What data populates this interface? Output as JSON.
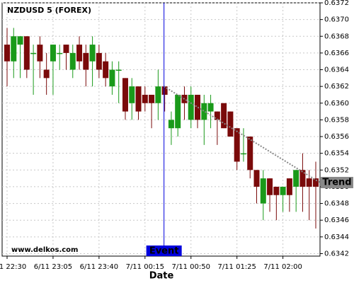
{
  "chart_data": {
    "type": "candlestick",
    "title": "NZDUSD 5 (FOREX)",
    "x_label": "Date",
    "watermark": "www.delkos.com",
    "categories": [
      "6/11 22:30",
      null,
      null,
      null,
      null,
      null,
      null,
      "6/11 23:05",
      null,
      null,
      null,
      null,
      null,
      null,
      "6/11 23:40",
      null,
      null,
      null,
      null,
      null,
      null,
      "7/11 00:15",
      null,
      null,
      null,
      null,
      null,
      null,
      "7/11 00:50",
      null,
      null,
      null,
      null,
      null,
      null,
      "7/11 01:25",
      null,
      null,
      null,
      null,
      null,
      null,
      "7/11 02:00",
      null,
      null,
      null,
      null,
      null
    ],
    "open": [
      0.6367,
      0.6365,
      0.6367,
      0.6368,
      0.6366,
      0.6367,
      0.6364,
      0.6365,
      0.6366,
      0.6367,
      0.6364,
      0.6367,
      0.6366,
      0.6365,
      0.6366,
      0.6365,
      0.6362,
      0.6364,
      0.6363,
      0.636,
      0.6362,
      0.6361,
      0.6361,
      0.636,
      0.6362,
      0.6357,
      0.6357,
      0.6361,
      0.6358,
      0.6361,
      0.6358,
      0.6359,
      0.6359,
      0.636,
      0.6359,
      0.6357,
      0.6354,
      0.6356,
      0.6352,
      0.6348,
      0.6351,
      0.635,
      0.6349,
      0.6351,
      0.635,
      0.6352,
      0.6351,
      0.6351
    ],
    "high": [
      0.6369,
      0.6369,
      0.6368,
      0.6368,
      0.6367,
      0.6368,
      0.6366,
      0.6367,
      0.6367,
      0.6367,
      0.6367,
      0.6368,
      0.6367,
      0.6368,
      0.6367,
      0.6366,
      0.6365,
      0.6365,
      0.6363,
      0.6363,
      0.6362,
      0.6362,
      0.6361,
      0.6364,
      0.6362,
      0.6359,
      0.6361,
      0.6362,
      0.6362,
      0.6361,
      0.6361,
      0.6361,
      0.6359,
      0.636,
      0.6359,
      0.6357,
      0.6357,
      0.6356,
      0.6352,
      0.6352,
      0.6351,
      0.635,
      0.635,
      0.6351,
      0.6352,
      0.6354,
      0.6352,
      0.6353
    ],
    "low": [
      0.6362,
      0.6363,
      0.6363,
      0.6363,
      0.6361,
      0.6363,
      0.6361,
      0.6361,
      0.6364,
      0.6364,
      0.6363,
      0.6364,
      0.6362,
      0.6362,
      0.6363,
      0.6362,
      0.6361,
      0.636,
      0.6358,
      0.6358,
      0.6358,
      0.6359,
      0.6357,
      0.6358,
      0.6359,
      0.6355,
      0.6356,
      0.6358,
      0.6357,
      0.6357,
      0.6355,
      0.6357,
      0.6355,
      0.6357,
      0.6356,
      0.6352,
      0.6353,
      0.6351,
      0.6348,
      0.6346,
      0.6347,
      0.6346,
      0.6347,
      0.6347,
      0.6347,
      0.6347,
      0.6346,
      0.6345
    ],
    "close": [
      0.6365,
      0.6368,
      0.6368,
      0.6364,
      0.6366,
      0.6365,
      0.6363,
      0.6367,
      0.6366,
      0.6366,
      0.6366,
      0.6365,
      0.6364,
      0.6367,
      0.6364,
      0.6363,
      0.6364,
      0.6364,
      0.6359,
      0.6362,
      0.6359,
      0.636,
      0.636,
      0.6362,
      0.6361,
      0.6358,
      0.6361,
      0.636,
      0.6361,
      0.6358,
      0.636,
      0.636,
      0.6358,
      0.6357,
      0.6356,
      0.6353,
      0.6354,
      0.6352,
      0.635,
      0.6351,
      0.6349,
      0.6349,
      0.635,
      0.6349,
      0.6352,
      0.635,
      0.635,
      0.635
    ],
    "up_color": "#1a9a1a",
    "down_color": "#7a0a0a",
    "event": {
      "label": "Event",
      "color": "#0000dd"
    },
    "trend": {
      "label": "Trend",
      "values": [
        0.6362,
        0.63505
      ],
      "color": "#888888"
    },
    "ylim": [
      0.63417,
      0.6372
    ],
    "yticks": [
      0.6342,
      0.6344,
      0.6346,
      0.6348,
      {
        "value": 0.635,
        "label": "0.6350"
      },
      0.6352,
      0.6354,
      0.6356,
      0.6358,
      {
        "value": 0.636,
        "label": "0.6360"
      },
      0.6362,
      0.6364,
      0.6366,
      0.6368,
      {
        "value": 0.637,
        "label": "0.6370"
      },
      0.6372
    ],
    "grid": true
  }
}
